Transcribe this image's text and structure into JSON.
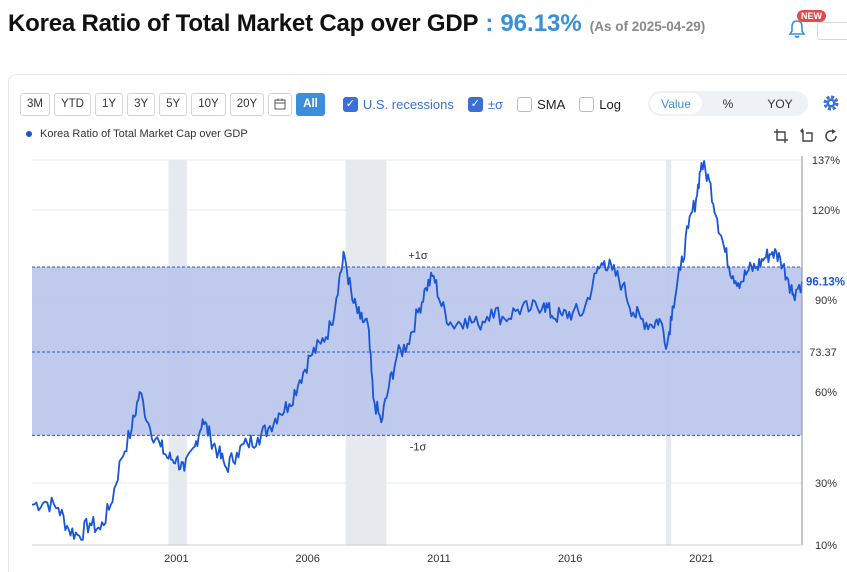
{
  "header": {
    "title": "Korea Ratio of Total Market Cap over GDP",
    "separator": ":",
    "value": "96.13%",
    "as_of": "(As of 2025-04-29)",
    "badge": "NEW"
  },
  "toolbar": {
    "ranges": [
      "3M",
      "YTD",
      "1Y",
      "3Y",
      "5Y",
      "10Y",
      "20Y"
    ],
    "all_label": "All",
    "checkboxes": [
      {
        "label": "U.S. recessions",
        "checked": true
      },
      {
        "label": "±σ",
        "checked": true
      },
      {
        "label": "SMA",
        "checked": false
      },
      {
        "label": "Log",
        "checked": false
      }
    ],
    "modes": [
      "Value",
      "%",
      "YOY"
    ],
    "active_mode": "Value"
  },
  "legend": {
    "label": "Korea Ratio of Total Market Cap over GDP"
  },
  "colors": {
    "line": "#1a56d6",
    "band": "#bcc7ec",
    "recession": "#e6eaef",
    "accent": "#3a8fd8",
    "value_tag": "#1a56d6"
  },
  "chart_data": {
    "type": "line",
    "title": "Korea Ratio of Total Market Cap over GDP",
    "x_range": [
      1996.0,
      2025.33
    ],
    "x_ticks": [
      "2001",
      "2006",
      "2011",
      "2016",
      "2021"
    ],
    "y_ticks": [
      "137%",
      "120%",
      "90%",
      "60%",
      "30%",
      "10%"
    ],
    "y_range": [
      10,
      137
    ],
    "mean_label": "73.37",
    "plus_sigma": 101.0,
    "minus_sigma": 45.7,
    "plus_sigma_label": "+1σ",
    "minus_sigma_label": "-1σ",
    "last_value_label": "96.13%",
    "recessions": [
      [
        2001.2,
        2001.9
      ],
      [
        2007.95,
        2009.5
      ],
      [
        2020.15,
        2020.35
      ]
    ],
    "series": [
      {
        "name": "Korea Ratio of Total Market Cap over GDP",
        "points": [
          [
            1996.0,
            23
          ],
          [
            1996.5,
            24
          ],
          [
            1997.0,
            22
          ],
          [
            1997.4,
            15
          ],
          [
            1997.8,
            13
          ],
          [
            1998.2,
            17
          ],
          [
            1998.6,
            15
          ],
          [
            1999.0,
            23
          ],
          [
            1999.4,
            38
          ],
          [
            1999.8,
            48
          ],
          [
            2000.1,
            60
          ],
          [
            2000.5,
            48
          ],
          [
            2000.9,
            42
          ],
          [
            2001.2,
            38
          ],
          [
            2001.5,
            38
          ],
          [
            2001.8,
            34
          ],
          [
            2002.2,
            42
          ],
          [
            2002.5,
            51
          ],
          [
            2002.8,
            45
          ],
          [
            2003.1,
            40
          ],
          [
            2003.4,
            35
          ],
          [
            2003.8,
            40
          ],
          [
            2004.2,
            43
          ],
          [
            2004.6,
            45
          ],
          [
            2005.0,
            48
          ],
          [
            2005.4,
            53
          ],
          [
            2005.8,
            56
          ],
          [
            2006.2,
            64
          ],
          [
            2006.6,
            72
          ],
          [
            2007.0,
            76
          ],
          [
            2007.4,
            82
          ],
          [
            2007.7,
            97
          ],
          [
            2007.9,
            105
          ],
          [
            2008.2,
            90
          ],
          [
            2008.5,
            84
          ],
          [
            2008.8,
            82
          ],
          [
            2009.0,
            58
          ],
          [
            2009.3,
            50
          ],
          [
            2009.6,
            62
          ],
          [
            2009.9,
            72
          ],
          [
            2010.3,
            76
          ],
          [
            2010.7,
            86
          ],
          [
            2011.0,
            94
          ],
          [
            2011.3,
            98
          ],
          [
            2011.6,
            88
          ],
          [
            2012.0,
            82
          ],
          [
            2012.5,
            84
          ],
          [
            2013.0,
            82
          ],
          [
            2013.5,
            87
          ],
          [
            2014.0,
            84
          ],
          [
            2014.5,
            87
          ],
          [
            2015.0,
            87
          ],
          [
            2015.5,
            89
          ],
          [
            2015.8,
            85
          ],
          [
            2016.2,
            85
          ],
          [
            2016.6,
            86
          ],
          [
            2017.0,
            86
          ],
          [
            2017.5,
            99
          ],
          [
            2017.8,
            103
          ],
          [
            2018.1,
            100
          ],
          [
            2018.5,
            95
          ],
          [
            2018.9,
            86
          ],
          [
            2019.2,
            84
          ],
          [
            2019.6,
            82
          ],
          [
            2019.9,
            84
          ],
          [
            2020.2,
            76
          ],
          [
            2020.4,
            88
          ],
          [
            2020.7,
            100
          ],
          [
            2021.0,
            114
          ],
          [
            2021.3,
            124
          ],
          [
            2021.5,
            136
          ],
          [
            2021.8,
            130
          ],
          [
            2022.1,
            117
          ],
          [
            2022.4,
            106
          ],
          [
            2022.7,
            98
          ],
          [
            2023.0,
            96
          ],
          [
            2023.3,
            100
          ],
          [
            2023.6,
            101
          ],
          [
            2023.9,
            104
          ],
          [
            2024.2,
            106
          ],
          [
            2024.5,
            104
          ],
          [
            2024.8,
            97
          ],
          [
            2025.0,
            92
          ],
          [
            2025.33,
            96.13
          ]
        ]
      }
    ]
  }
}
